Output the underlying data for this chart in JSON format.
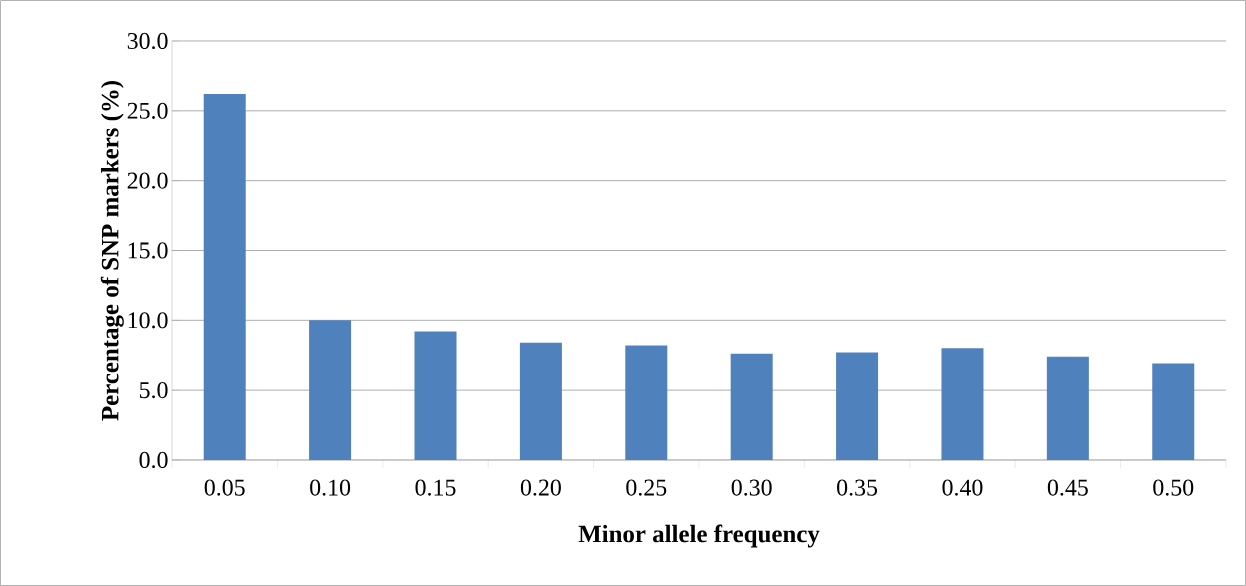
{
  "chart_data": {
    "type": "bar",
    "xlabel": "Minor allele frequency",
    "ylabel": "Percentage of SNP markers (%)",
    "categories": [
      "0.05",
      "0.10",
      "0.15",
      "0.20",
      "0.25",
      "0.30",
      "0.35",
      "0.40",
      "0.45",
      "0.50"
    ],
    "values": [
      26.2,
      10.0,
      9.2,
      8.4,
      8.2,
      7.6,
      7.7,
      8.0,
      7.4,
      6.9
    ],
    "color": "#4f81bd",
    "ylim": [
      0,
      30
    ],
    "yticks": [
      {
        "value": 0,
        "label": "0.0"
      },
      {
        "value": 5,
        "label": "5.0"
      },
      {
        "value": 10,
        "label": "10.0"
      },
      {
        "value": 15,
        "label": "15.0"
      },
      {
        "value": 20,
        "label": "20.0"
      },
      {
        "value": 25,
        "label": "25.0"
      },
      {
        "value": 30,
        "label": "30.0"
      }
    ],
    "grid": "y"
  }
}
